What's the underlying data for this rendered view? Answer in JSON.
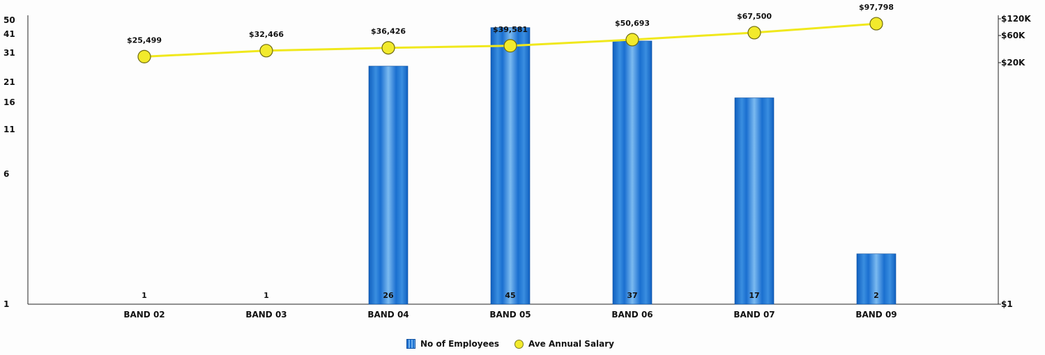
{
  "chart_data": {
    "type": "bar",
    "categories": [
      "BAND 02",
      "BAND 03",
      "BAND 04",
      "BAND 05",
      "BAND 06",
      "BAND 07",
      "BAND 09"
    ],
    "series": [
      {
        "name": "No of Employees",
        "type": "bar",
        "axis": "left",
        "values": [
          1,
          1,
          26,
          45,
          37,
          17,
          2
        ],
        "color": "#1a6fd0"
      },
      {
        "name": "Ave Annual Salary",
        "type": "line",
        "axis": "right",
        "values": [
          25499,
          32466,
          36426,
          39581,
          50693,
          67500,
          97798
        ],
        "labels": [
          "$25,499",
          "$32,466",
          "$36,426",
          "$39,581",
          "$50,693",
          "$67,500",
          "$97,798"
        ],
        "color": "#f2ea2c"
      }
    ],
    "left_axis": {
      "scale": "log",
      "ticks": [
        1,
        6,
        11,
        16,
        21,
        31,
        41,
        50
      ],
      "tick_labels": [
        "1",
        "6",
        "11",
        "16",
        "21",
        "31",
        "41",
        "50"
      ],
      "range": [
        1,
        50
      ]
    },
    "right_axis": {
      "scale": "log",
      "ticks": [
        1,
        20000,
        60000,
        120000
      ],
      "tick_labels": [
        "$1",
        "$20K",
        "$60K",
        "$120K"
      ],
      "range": [
        1,
        120000
      ]
    },
    "legend": {
      "placement": "bottom-center",
      "items": [
        "No of Employees",
        "Ave Annual Salary"
      ]
    }
  }
}
